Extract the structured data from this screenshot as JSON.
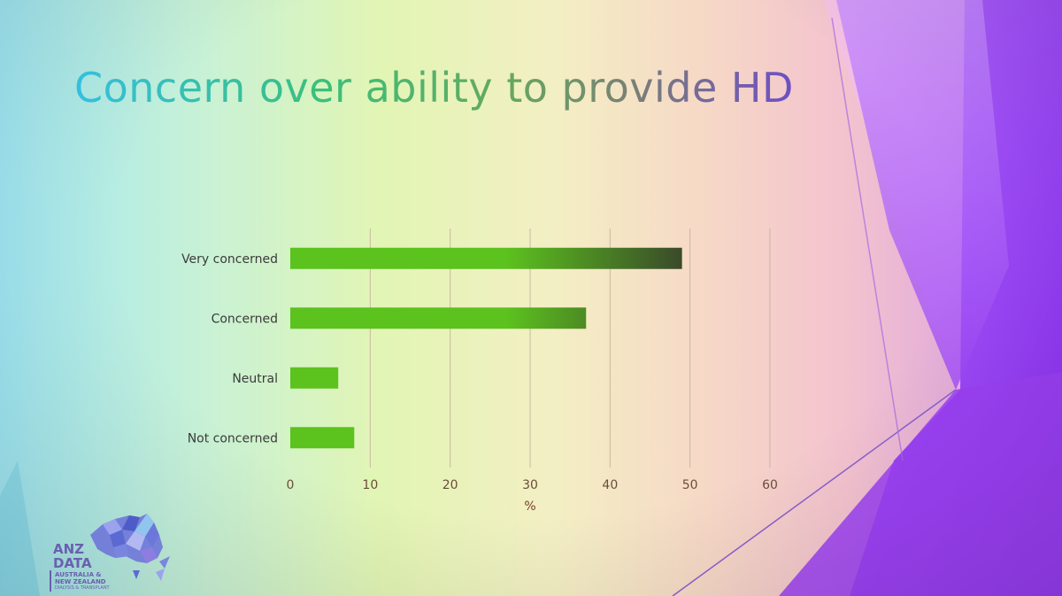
{
  "slide": {
    "title": "Concern over ability to provide HD"
  },
  "logo": {
    "line1": "ANZ",
    "line2": "DATA",
    "line3": "AUSTRALIA &",
    "line4": "NEW ZEALAND",
    "line5": "DIALYSIS & TRANSPLANT"
  },
  "colors": {
    "bar": "#5cc21e",
    "bar_dark": "#3a4a2a",
    "gridline": "#c9b8a2",
    "title_start": "#34bfe0",
    "title_end": "#6e4fc6",
    "accent_purple": "#a24bff"
  },
  "chart_data": {
    "type": "bar",
    "orientation": "horizontal",
    "categories": [
      "Very concerned",
      "Concerned",
      "Neutral",
      "Not concerned"
    ],
    "values": [
      49,
      37,
      6,
      8
    ],
    "xlabel": "%",
    "xlim": [
      0,
      60
    ],
    "xticks": [
      0,
      10,
      20,
      30,
      40,
      50,
      60
    ],
    "grid": "vertical",
    "legend": "none"
  }
}
